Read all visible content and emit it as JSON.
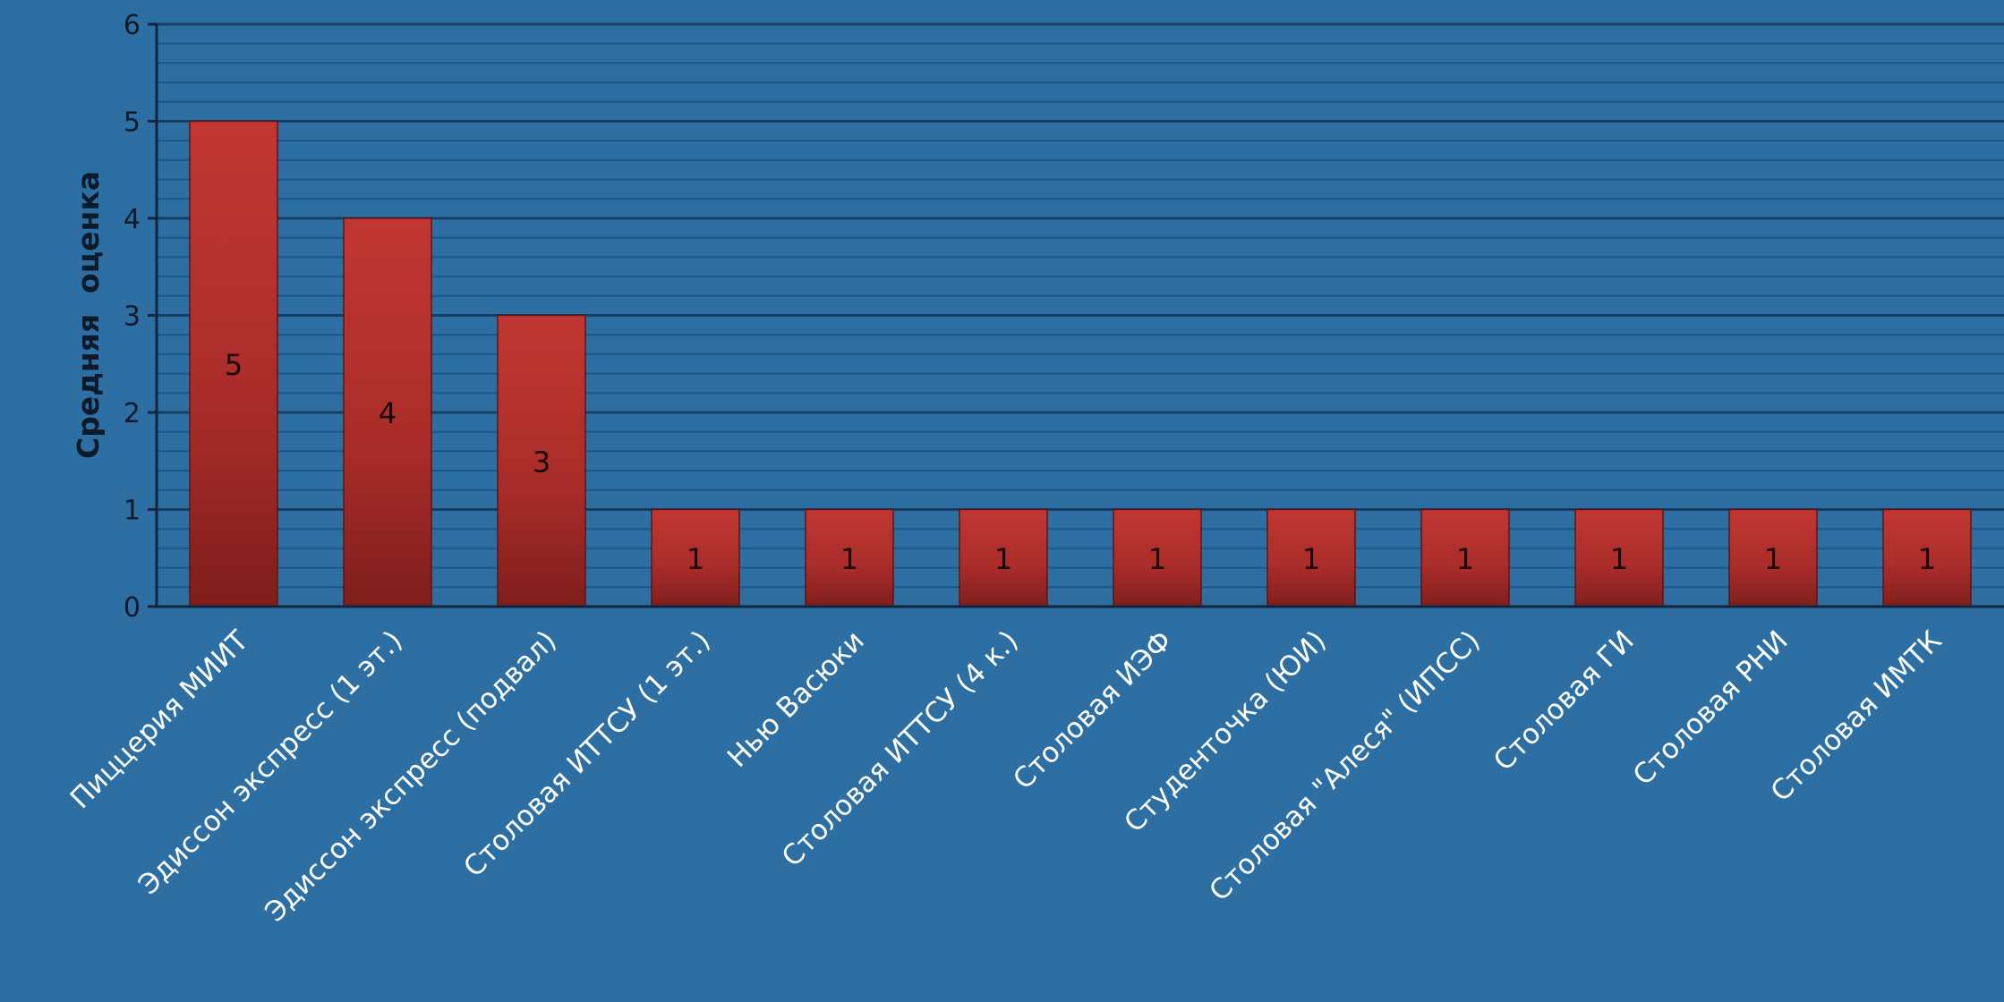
{
  "chart_data": {
    "type": "bar",
    "title": "",
    "xlabel": "",
    "ylabel": "Средняя  оценка",
    "ylim": [
      0,
      6
    ],
    "yticks": [
      0,
      1,
      2,
      3,
      4,
      5,
      6
    ],
    "minor_step": 0.2,
    "grid": true,
    "legend": "none",
    "categories": [
      "Пиццерия МИИТ",
      "Эдиссон экспресс (1 эт.)",
      "Эдиссон экспресс (подвал)",
      "Столовая ИТТСУ (1 эт.)",
      "Нью Васюки",
      "Столовая ИТТСУ (4 к.)",
      "Столовая  ИЭФ",
      "Студенточка (ЮИ)",
      "Столовая \"Алеся\" (ИПСС)",
      "Столовая ГИ",
      "Столовая РНИ",
      "Столовая ИМТК"
    ],
    "values": [
      5,
      4,
      3,
      1,
      1,
      1,
      1,
      1,
      1,
      1,
      1,
      1
    ],
    "data_labels": [
      "5",
      "4",
      "3",
      "1",
      "1",
      "1",
      "1",
      "1",
      "1",
      "1",
      "1",
      "1"
    ],
    "colors": {
      "background": "#2d6fa3",
      "bar": "#b0302c",
      "bar_dark": "#7e1e1c",
      "grid_major": "#163e63",
      "grid_minor": "#1f5585"
    }
  }
}
